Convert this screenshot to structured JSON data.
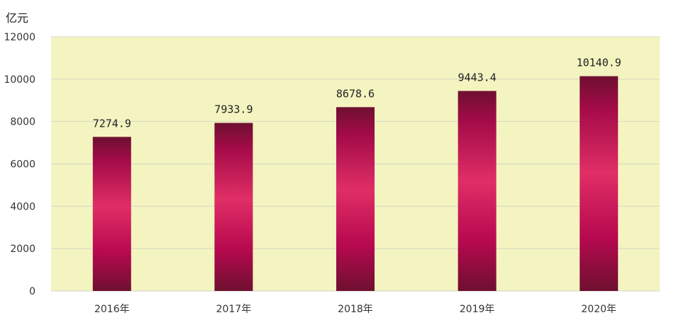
{
  "chart_data": {
    "type": "bar",
    "unit_label": "亿元",
    "categories": [
      "2016年",
      "2017年",
      "2018年",
      "2019年",
      "2020年"
    ],
    "values": [
      7274.9,
      7933.9,
      8678.6,
      9443.4,
      10140.9
    ],
    "value_labels": [
      "7274.9",
      "7933.9",
      "8678.6",
      "9443.4",
      "10140.9"
    ],
    "ylim": [
      0,
      12000
    ],
    "yticks": [
      0,
      2000,
      4000,
      6000,
      8000,
      10000,
      12000
    ],
    "grid": true,
    "legend": "none",
    "plot_background": "#f3f4c0",
    "bar_colors": [
      "#6e1030",
      "#a30b48",
      "#e02e66"
    ]
  }
}
